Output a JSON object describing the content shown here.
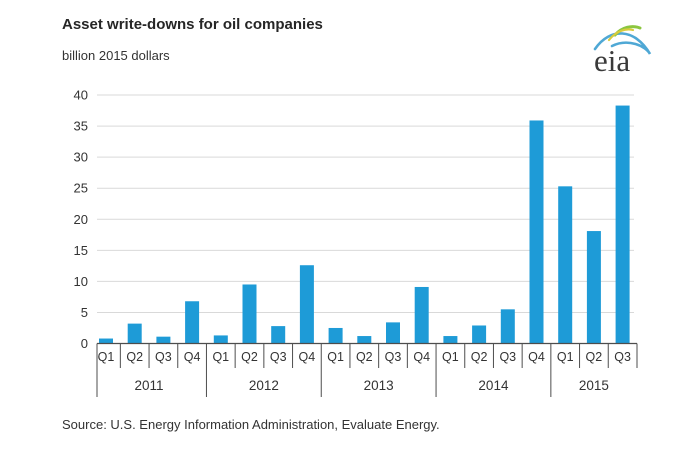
{
  "header": {
    "title": "Asset write-downs for oil companies",
    "subtitle": "billion 2015 dollars"
  },
  "logo": {
    "text": "eia"
  },
  "footer": {
    "source": "Source:  U.S. Energy Information Administration, Evaluate Energy."
  },
  "colors": {
    "bar": "#1E9BD7",
    "grid": "#D9D9D9",
    "axis": "#4D4D4D",
    "text": "#333333",
    "logo_text": "#3A3A3A",
    "logo_blue": "#4FA8D5",
    "logo_green": "#8CC63F",
    "logo_yellow": "#D9CB3C"
  },
  "chart_data": {
    "type": "bar",
    "title": "Asset write-downs for oil companies",
    "xlabel": "",
    "ylabel": "billion 2015 dollars",
    "ylim": [
      0,
      40
    ],
    "ytick_step": 5,
    "grid": true,
    "legend": false,
    "groups": [
      {
        "year": "2011",
        "quarters": [
          "Q1",
          "Q2",
          "Q3",
          "Q4"
        ],
        "values": [
          0.8,
          3.2,
          1.1,
          6.8
        ]
      },
      {
        "year": "2012",
        "quarters": [
          "Q1",
          "Q2",
          "Q3",
          "Q4"
        ],
        "values": [
          1.3,
          9.5,
          2.8,
          12.6
        ]
      },
      {
        "year": "2013",
        "quarters": [
          "Q1",
          "Q2",
          "Q3",
          "Q4"
        ],
        "values": [
          2.5,
          1.2,
          3.4,
          9.1
        ]
      },
      {
        "year": "2014",
        "quarters": [
          "Q1",
          "Q2",
          "Q3",
          "Q4"
        ],
        "values": [
          1.2,
          2.9,
          5.5,
          35.9
        ]
      },
      {
        "year": "2015",
        "quarters": [
          "Q1",
          "Q2",
          "Q3"
        ],
        "values": [
          25.3,
          18.1,
          38.3
        ]
      }
    ]
  }
}
